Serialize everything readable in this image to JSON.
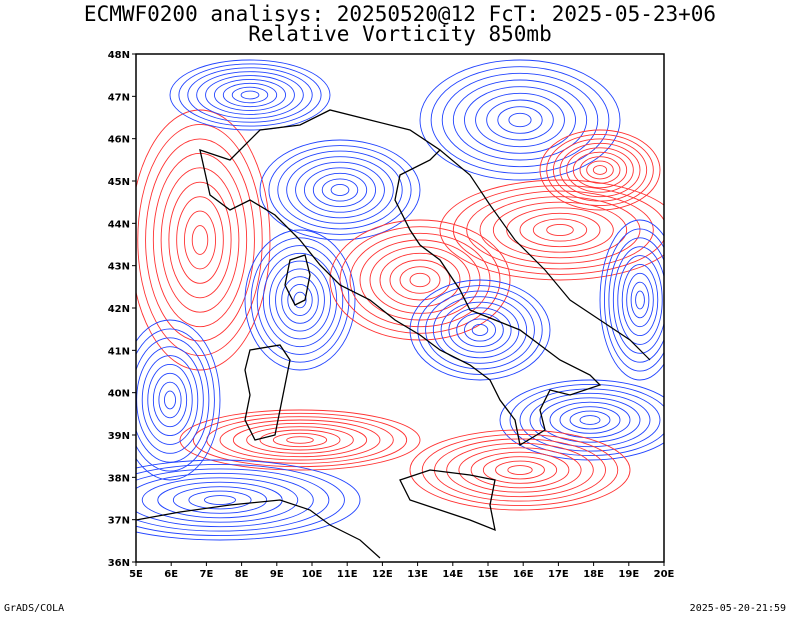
{
  "header": {
    "line1": "ECMWF0200 analisys: 20250520@12 FcT: 2025-05-23+06",
    "line2": "Relative Vorticity 850mb"
  },
  "footer": {
    "left": "GrADS/COLA",
    "right": "2025-05-20-21:59"
  },
  "map": {
    "lon_range": [
      5,
      20
    ],
    "lat_range": [
      36,
      48
    ],
    "lon_ticks": [
      "5E",
      "6E",
      "7E",
      "8E",
      "9E",
      "10E",
      "11E",
      "12E",
      "13E",
      "14E",
      "15E",
      "16E",
      "17E",
      "18E",
      "19E",
      "20E"
    ],
    "lat_ticks": [
      "36N",
      "37N",
      "38N",
      "39N",
      "40N",
      "41N",
      "42N",
      "43N",
      "44N",
      "45N",
      "46N",
      "47N",
      "48N"
    ],
    "colors": {
      "positive": "#ff3333",
      "negative": "#2244ff",
      "coast": "#000000",
      "frame": "#000000"
    }
  }
}
